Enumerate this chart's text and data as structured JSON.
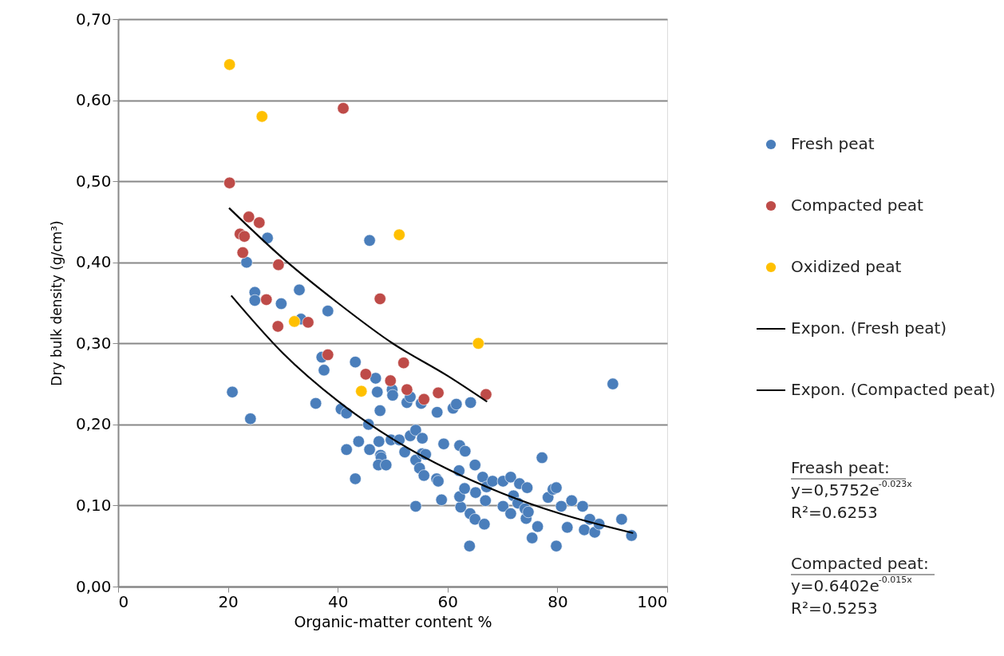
{
  "chart_data": {
    "type": "scatter",
    "xlabel": "Organic-matter content %",
    "ylabel": "Dry bulk density (g/cm³)",
    "xlim": [
      0,
      100
    ],
    "xticks": [
      0,
      20,
      40,
      60,
      80,
      100
    ],
    "ylim": [
      0,
      0.7
    ],
    "yticks": [
      {
        "value": 0,
        "label": "0,00"
      },
      {
        "value": 0.1,
        "label": "0,10"
      },
      {
        "value": 0.2,
        "label": "0,20"
      },
      {
        "value": 0.3,
        "label": "0,30"
      },
      {
        "value": 0.4,
        "label": "0,40"
      },
      {
        "value": 0.5,
        "label": "0,50"
      },
      {
        "value": 0.6,
        "label": "0,60"
      },
      {
        "value": 0.7,
        "label": "0,70"
      }
    ],
    "grid": "y",
    "legend": "right",
    "marker": "circle",
    "series": [
      {
        "name": "Fresh peat",
        "color": "#4a7ebb",
        "x": [
          20.8,
          24.1,
          27.2,
          23.4,
          24.9,
          24.9,
          29.7,
          33.0,
          33.3,
          38.2,
          37.1,
          37.5,
          36.0,
          43.2,
          45.6,
          46.9,
          47.2,
          47.7,
          45.8,
          40.6,
          41.6,
          41.6,
          43.8,
          43.2,
          45.8,
          47.5,
          47.8,
          47.9,
          47.4,
          48.8,
          49.7,
          49.9,
          50.0,
          51.2,
          52.2,
          52.6,
          53.2,
          53.2,
          54.2,
          54.2,
          54.2,
          54.9,
          55.4,
          55.4,
          55.2,
          55.7,
          56.0,
          58.1,
          58.0,
          58.3,
          58.9,
          59.3,
          61.0,
          61.6,
          62.1,
          62.2,
          62.4,
          62.2,
          63.2,
          63.1,
          64.0,
          64.2,
          64.1,
          65.0,
          65.1,
          65.0,
          66.4,
          66.7,
          66.9,
          67.1,
          68.2,
          70.1,
          70.1,
          71.5,
          71.5,
          72.0,
          72.8,
          73.1,
          74.1,
          74.3,
          74.5,
          74.7,
          75.4,
          76.4,
          77.2,
          78.3,
          79.2,
          79.8,
          79.8,
          80.7,
          81.8,
          82.6,
          84.6,
          84.9,
          85.9,
          86.8,
          87.6,
          90.1,
          91.7,
          93.5
        ],
        "values": [
          0.24,
          0.207,
          0.43,
          0.4,
          0.363,
          0.353,
          0.349,
          0.366,
          0.33,
          0.34,
          0.283,
          0.267,
          0.226,
          0.277,
          0.2,
          0.257,
          0.24,
          0.217,
          0.427,
          0.219,
          0.214,
          0.169,
          0.179,
          0.133,
          0.169,
          0.179,
          0.162,
          0.159,
          0.15,
          0.15,
          0.181,
          0.243,
          0.236,
          0.181,
          0.166,
          0.227,
          0.234,
          0.186,
          0.193,
          0.156,
          0.099,
          0.146,
          0.164,
          0.183,
          0.226,
          0.137,
          0.163,
          0.215,
          0.133,
          0.13,
          0.107,
          0.176,
          0.22,
          0.225,
          0.143,
          0.174,
          0.098,
          0.111,
          0.167,
          0.121,
          0.05,
          0.227,
          0.09,
          0.083,
          0.116,
          0.15,
          0.135,
          0.077,
          0.106,
          0.123,
          0.13,
          0.099,
          0.13,
          0.09,
          0.135,
          0.112,
          0.103,
          0.127,
          0.096,
          0.084,
          0.122,
          0.092,
          0.06,
          0.074,
          0.159,
          0.11,
          0.12,
          0.122,
          0.05,
          0.099,
          0.073,
          0.106,
          0.099,
          0.07,
          0.083,
          0.067,
          0.077,
          0.25,
          0.083,
          0.063
        ]
      },
      {
        "name": "Compacted peat",
        "color": "#be4b48",
        "x": [
          20.3,
          41.0,
          23.8,
          25.7,
          22.2,
          23.0,
          22.7,
          29.2,
          27.0,
          34.6,
          29.1,
          38.2,
          47.7,
          45.1,
          49.6,
          52.0,
          52.6,
          55.7,
          58.3,
          67.0
        ],
        "values": [
          0.498,
          0.59,
          0.456,
          0.449,
          0.435,
          0.432,
          0.412,
          0.397,
          0.354,
          0.326,
          0.321,
          0.286,
          0.355,
          0.262,
          0.254,
          0.276,
          0.243,
          0.231,
          0.239,
          0.237
        ]
      },
      {
        "name": "Oxidized peat",
        "color": "#ffc000",
        "x": [
          20.3,
          26.2,
          51.2,
          32.1,
          65.6,
          44.3
        ],
        "values": [
          0.644,
          0.58,
          0.434,
          0.327,
          0.3,
          0.241
        ]
      },
      {
        "name": "Expon. (Fresh peat)",
        "type": "line",
        "color": "#000000",
        "marker": "none",
        "x": [
          20.6,
          30,
          40,
          50,
          60,
          70,
          80,
          93.8
        ],
        "values": [
          0.359,
          0.288,
          0.229,
          0.182,
          0.145,
          0.115,
          0.091,
          0.066
        ]
      },
      {
        "name": "Expon. (Compacted peat)",
        "type": "line",
        "color": "#000000",
        "marker": "none",
        "x": [
          20.2,
          30,
          40,
          50,
          60,
          67.2
        ],
        "values": [
          0.467,
          0.405,
          0.35,
          0.3,
          0.26,
          0.228
        ]
      }
    ],
    "annotations": [
      "Freash peat:",
      "y=0,5752e$^{-0.023x}$",
      "R²=0.6253",
      "Compacted peat:",
      "y=0.6402e$^{-0.015x}$",
      "R²=0.5253"
    ]
  }
}
